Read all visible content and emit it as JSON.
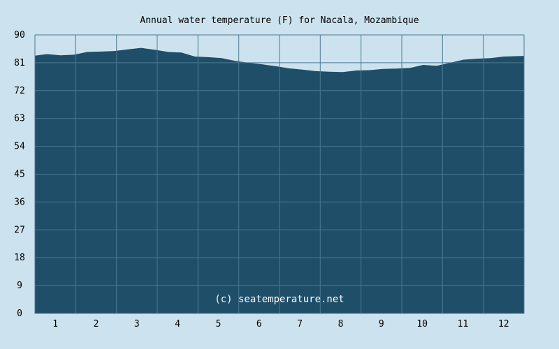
{
  "chart_data": {
    "type": "area",
    "title": "Annual water temperature (F) for Nacala, Mozambique",
    "xlabel": "",
    "ylabel": "",
    "x_tick_labels": [
      "1",
      "2",
      "3",
      "4",
      "5",
      "6",
      "7",
      "8",
      "9",
      "10",
      "11",
      "12"
    ],
    "y_tick_labels": [
      "0",
      "9",
      "18",
      "27",
      "36",
      "45",
      "54",
      "63",
      "72",
      "81",
      "90"
    ],
    "ylim": [
      0,
      90
    ],
    "xlim": [
      1,
      365
    ],
    "grid": true,
    "watermark": "(c) seatemperature.net",
    "colors": {
      "fill": "#1f4e69",
      "grid": "#4e7891",
      "background": "#cce3ef",
      "watermark": "#ffffff"
    },
    "series": [
      {
        "day": [
          1,
          10,
          20,
          30,
          40,
          50,
          60,
          70,
          80,
          90,
          100,
          110,
          120,
          130,
          140,
          150,
          160,
          170,
          180,
          190,
          200,
          210,
          220,
          230,
          240,
          250,
          260,
          270,
          280,
          290,
          300,
          310,
          320,
          330,
          340,
          350,
          365
        ],
        "values": [
          83.3,
          83.8,
          83.4,
          83.6,
          84.5,
          84.6,
          84.8,
          85.3,
          85.8,
          85.2,
          84.5,
          84.3,
          83.0,
          82.8,
          82.5,
          81.6,
          81.0,
          80.5,
          79.9,
          79.2,
          78.8,
          78.3,
          78.1,
          78.0,
          78.5,
          78.6,
          79.0,
          79.1,
          79.3,
          80.3,
          80.0,
          81.0,
          82.0,
          82.3,
          82.5,
          83.0,
          83.2
        ]
      }
    ]
  }
}
